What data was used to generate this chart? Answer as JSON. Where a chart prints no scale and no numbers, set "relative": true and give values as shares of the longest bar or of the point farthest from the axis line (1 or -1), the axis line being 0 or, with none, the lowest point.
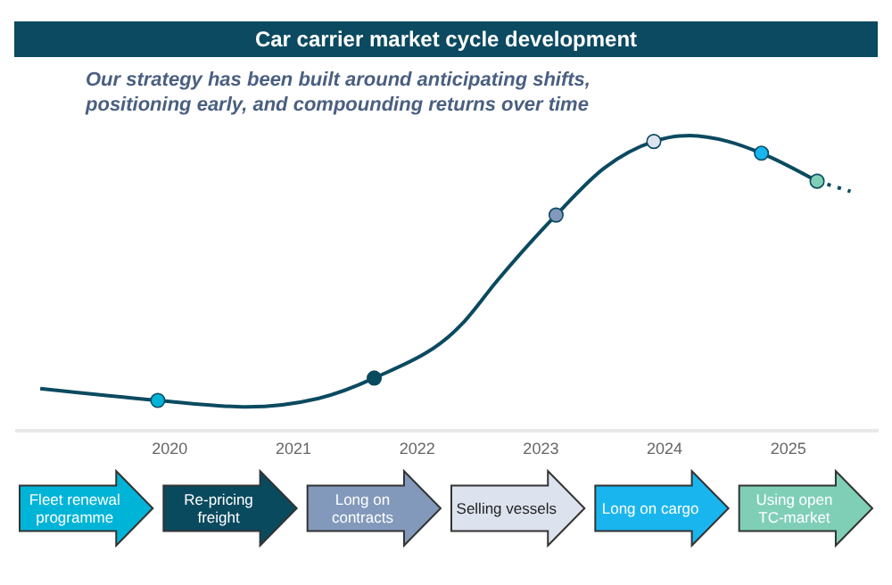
{
  "chart_data": {
    "type": "line",
    "title": "Car carrier market cycle development",
    "subtitle": "Our strategy has been built around anticipating shifts,\npositioning early, and compounding returns over time",
    "relative": true,
    "grid": false,
    "legend": false,
    "xlim": [
      2018.75,
      2025.73
    ],
    "xticks": [
      2020,
      2021,
      2022,
      2023,
      2024,
      2025
    ],
    "series": [
      {
        "color": "#0b4a60",
        "marker": "none",
        "line_style": "solid",
        "x": [
          2018.96,
          2019.91,
          2020.63,
          2021.21,
          2021.66,
          2022.37,
          2022.66,
          2023.13,
          2023.52,
          2023.92,
          2024.21,
          2024.52,
          2024.79,
          2025.24
        ],
        "values": [
          0.14,
          0.1,
          0.078,
          0.107,
          0.176,
          0.36,
          0.51,
          0.73,
          0.89,
          0.98,
          1.0,
          0.98,
          0.94,
          0.845
        ]
      },
      {
        "color": "#0b4a60",
        "marker": "none",
        "line_style": "dotted",
        "x": [
          2025.24,
          2025.51
        ],
        "values": [
          0.845,
          0.81
        ]
      },
      {
        "type": "scatter",
        "marker": "circle",
        "x": [
          2019.91,
          2021.66,
          2023.13,
          2023.92,
          2024.79,
          2025.24
        ],
        "values": [
          0.1,
          0.176,
          0.73,
          0.98,
          0.94,
          0.845
        ],
        "colors": [
          "#00b4d8",
          "#0a4a5e",
          "#8299bb",
          "#dde3ee",
          "#19b5ee",
          "#7fcfb6"
        ]
      }
    ],
    "annotations": [
      "Fleet renewal programme",
      "Re-pricing freight",
      "Long on contracts",
      "Selling vessels",
      "Long on cargo",
      "Using open TC-market"
    ]
  }
}
